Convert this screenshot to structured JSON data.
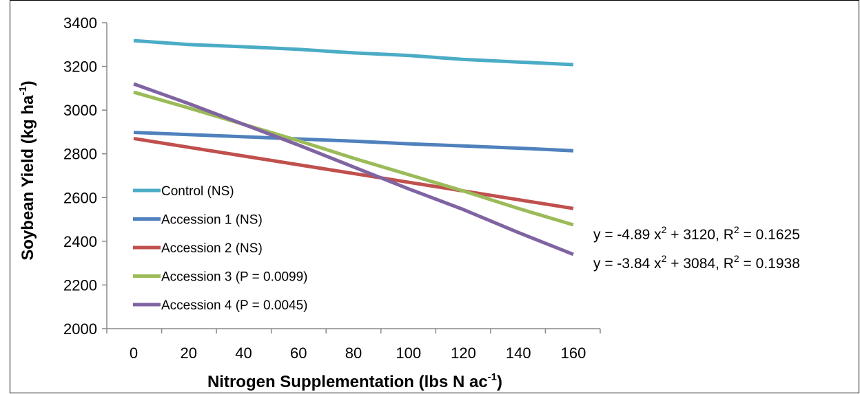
{
  "chart_data": {
    "type": "line",
    "xlabel": "Nitrogen Supplementation (lbs N ac",
    "xlabel_sup": "-1",
    "xlabel_end": ")",
    "ylabel": "Soybean Yield (kg ha",
    "ylabel_sup": "-1",
    "ylabel_end": ")",
    "xlim": [
      0,
      160
    ],
    "ylim": [
      2000,
      3400
    ],
    "x_ticks": [
      "0",
      "20",
      "40",
      "60",
      "80",
      "100",
      "120",
      "140",
      "160"
    ],
    "y_ticks": [
      "2000",
      "2200",
      "2400",
      "2600",
      "2800",
      "3000",
      "3200",
      "3400"
    ],
    "x": [
      0,
      20,
      40,
      60,
      80,
      100,
      120,
      140,
      160
    ],
    "series": [
      {
        "name": "Control (NS)",
        "color": "#4BACC6",
        "values": [
          3318,
          3300,
          3290,
          3278,
          3262,
          3250,
          3232,
          3220,
          3208
        ]
      },
      {
        "name": "Accession 1 (NS)",
        "color": "#4F81BD",
        "values": [
          2898,
          2888,
          2878,
          2868,
          2858,
          2846,
          2836,
          2826,
          2814
        ]
      },
      {
        "name": "Accession 2 (NS)",
        "color": "#C0504D",
        "values": [
          2870,
          2830,
          2790,
          2750,
          2710,
          2670,
          2630,
          2590,
          2550
        ]
      },
      {
        "name": "Accession 3 (P = 0.0099)",
        "color": "#9BBB59",
        "values": [
          3082,
          3010,
          2935,
          2860,
          2780,
          2705,
          2630,
          2550,
          2475
        ]
      },
      {
        "name": "Accession 4 (P = 0.0045)",
        "color": "#8064A2",
        "values": [
          3120,
          3030,
          2935,
          2840,
          2740,
          2640,
          2545,
          2440,
          2340
        ]
      }
    ],
    "legend_position": "inside-left",
    "grid": false,
    "annotations": [
      {
        "pre": "y = -4.89 x",
        "sup": "2",
        "mid": " + 3120,  R",
        "sup2": "2",
        "post": " = 0.1625"
      },
      {
        "pre": "y = -3.84 x",
        "sup": "2",
        "mid": " + 3084,  R",
        "sup2": "2",
        "post": " = 0.1938"
      }
    ]
  }
}
